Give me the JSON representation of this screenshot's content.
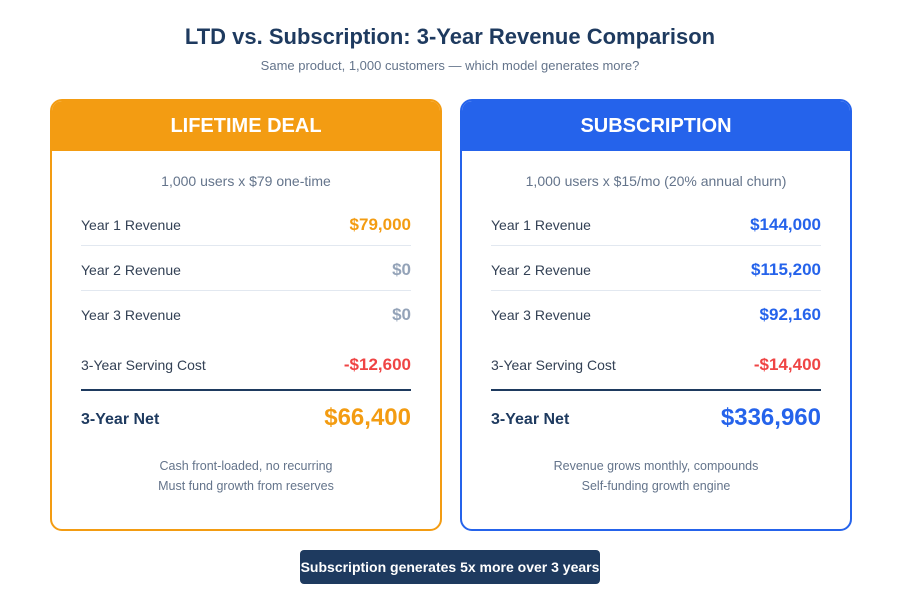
{
  "header": {
    "title": "LTD vs. Subscription: 3-Year Revenue Comparison",
    "subtitle": "Same product, 1,000 customers — which model generates more?"
  },
  "cards": [
    {
      "title": "LIFETIME DEAL",
      "color": "#f39c12",
      "description": "1,000 users x $79 one-time",
      "rows": [
        {
          "label": "Year 1 Revenue",
          "value": "$79,000",
          "color": "#f39c12"
        },
        {
          "label": "Year 2 Revenue",
          "value": "$0",
          "color": "#94a3b8"
        },
        {
          "label": "Year 3 Revenue",
          "value": "$0",
          "color": "#94a3b8"
        },
        {
          "label": "3-Year Serving Cost",
          "value": "-$12,600",
          "color": "#ef4444"
        }
      ],
      "net": {
        "label": "3-Year Net",
        "value": "$66,400"
      },
      "notes": [
        "Cash front-loaded, no recurring",
        "Must fund growth from reserves"
      ]
    },
    {
      "title": "SUBSCRIPTION",
      "color": "#2563eb",
      "description": "1,000 users x $15/mo (20% annual churn)",
      "rows": [
        {
          "label": "Year 1 Revenue",
          "value": "$144,000",
          "color": "#2563eb"
        },
        {
          "label": "Year 2 Revenue",
          "value": "$115,200",
          "color": "#2563eb"
        },
        {
          "label": "Year 3 Revenue",
          "value": "$92,160",
          "color": "#2563eb"
        },
        {
          "label": "3-Year Serving Cost",
          "value": "-$14,400",
          "color": "#ef4444"
        }
      ],
      "net": {
        "label": "3-Year Net",
        "value": "$336,960"
      },
      "notes": [
        "Revenue grows monthly, compounds",
        "Self-funding growth engine"
      ]
    }
  ],
  "footer": {
    "banner": "Subscription generates 5x more over 3 years"
  }
}
